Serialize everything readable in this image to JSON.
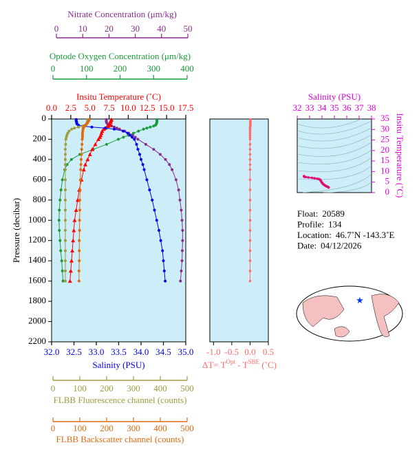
{
  "chart_data": [
    {
      "type": "profile",
      "y_label": "Pressure (decibar)",
      "ylim": [
        0,
        2200
      ],
      "yticks": [
        0,
        200,
        400,
        600,
        800,
        1000,
        1200,
        1400,
        1600,
        1800,
        2000,
        2200
      ],
      "y": [
        5,
        10,
        20,
        30,
        40,
        50,
        60,
        70,
        80,
        90,
        100,
        120,
        140,
        160,
        180,
        200,
        250,
        300,
        350,
        400,
        450,
        500,
        600,
        700,
        800,
        900,
        1000,
        1100,
        1200,
        1300,
        1400,
        1500,
        1600
      ],
      "profiles": [
        {
          "label": "Nitrate Concentration (μm/kg)",
          "color": "#8b2b8b",
          "xlim": [
            0,
            50
          ],
          "xticks": [
            0,
            10,
            20,
            30,
            40,
            50
          ],
          "values": [
            19,
            19,
            19,
            19,
            19.2,
            19.5,
            20,
            21,
            22,
            23,
            24,
            26,
            27.5,
            29,
            30,
            31,
            34,
            37,
            39.5,
            41.5,
            43,
            44,
            45.5,
            46.5,
            47,
            47.5,
            47.8,
            48,
            48,
            47.9,
            47.8,
            47.5,
            47.2
          ]
        },
        {
          "label": "Optode Oxygen Concentration (μm/kg)",
          "color": "#1a9b3a",
          "xlim": [
            0,
            400
          ],
          "xticks": [
            0,
            100,
            200,
            300,
            400
          ],
          "values": [
            310,
            310,
            310,
            310,
            309,
            308,
            306,
            300,
            290,
            280,
            270,
            255,
            240,
            225,
            210,
            195,
            160,
            120,
            80,
            55,
            42,
            35,
            28,
            24,
            21,
            19,
            18,
            19,
            21,
            23,
            26,
            28,
            30
          ]
        },
        {
          "label": "Insitu Temperature (˚C)",
          "color": "#ff0000",
          "xlim": [
            0,
            17.5
          ],
          "xticks": [
            {
              "value": 0,
              "label": "0.0"
            },
            2.5,
            {
              "value": 5,
              "label": "5.0"
            },
            7.5,
            {
              "value": 10,
              "label": "10.0"
            },
            12.5,
            {
              "value": 15,
              "label": "15.0"
            },
            17.5
          ],
          "values": [
            7.8,
            7.8,
            7.7,
            7.7,
            7.6,
            7.6,
            7.5,
            7.4,
            7.2,
            7.0,
            6.8,
            6.6,
            6.5,
            6.4,
            6.3,
            6.1,
            5.7,
            5.3,
            5.0,
            4.7,
            4.4,
            4.2,
            3.9,
            3.6,
            3.4,
            3.2,
            3.0,
            2.9,
            2.8,
            2.7,
            2.6,
            2.5,
            2.4
          ]
        },
        {
          "label": "Salinity (PSU)",
          "color": "#0000ee",
          "xlim": [
            32,
            35
          ],
          "xticks": [
            {
              "value": 32,
              "label": "32.0"
            },
            32.5,
            {
              "value": 33,
              "label": "33.0"
            },
            33.5,
            {
              "value": 34,
              "label": "34.0"
            },
            34.5,
            {
              "value": 35,
              "label": "35.0"
            }
          ],
          "values": [
            32.55,
            32.55,
            32.55,
            32.56,
            32.56,
            32.57,
            32.6,
            32.7,
            32.9,
            33.2,
            33.4,
            33.6,
            33.7,
            33.75,
            33.8,
            33.85,
            33.9,
            33.93,
            33.97,
            34.0,
            34.04,
            34.07,
            34.13,
            34.19,
            34.25,
            34.3,
            34.35,
            34.4,
            34.44,
            34.48,
            34.5,
            34.52,
            34.54
          ]
        },
        {
          "label": "FLBB Fluorescence channel (counts)",
          "color": "#9c9c3c",
          "xlim": [
            0,
            500
          ],
          "xticks": [
            0,
            100,
            200,
            300,
            400,
            500
          ],
          "values": [
            130,
            130,
            129,
            128,
            127,
            125,
            120,
            110,
            95,
            80,
            70,
            60,
            55,
            52,
            50,
            48,
            47,
            46,
            46,
            46,
            46,
            46,
            46,
            46,
            46,
            46,
            46,
            46,
            46,
            46,
            46,
            46,
            46
          ]
        },
        {
          "label": "FLBB Backscatter channel (counts)",
          "color": "#e06a10",
          "xlim": [
            0,
            500
          ],
          "xticks": [
            0,
            100,
            200,
            300,
            400,
            500
          ],
          "values": [
            135,
            134,
            133,
            130,
            128,
            125,
            122,
            118,
            115,
            113,
            112,
            111,
            110,
            110,
            110,
            109,
            108,
            107,
            106,
            105,
            104,
            103,
            102,
            101,
            100,
            100,
            99,
            99,
            98,
            98,
            98,
            97,
            97
          ]
        }
      ]
    },
    {
      "type": "difference",
      "color": "#ff6a6a",
      "label_parts": [
        "ΔT= T",
        "Opt",
        " - T",
        "SBE",
        " (˚C)"
      ],
      "xlim": [
        -1.1,
        0.5
      ],
      "xticks": [
        {
          "value": -1,
          "label": "-1.0"
        },
        -0.5,
        {
          "value": 0,
          "label": "0.0"
        },
        0.5
      ],
      "values": [
        0.01,
        0.01,
        0.01,
        0.01,
        0.01,
        0.01,
        0.01,
        0.01,
        0.0,
        0.0,
        0.0,
        0.0,
        0.0,
        0.0,
        0.0,
        0.0,
        0.0,
        0.0,
        0.0,
        0.0,
        0.0,
        0.0,
        0.0,
        0.0,
        0.0,
        0.0,
        0.0,
        0.0,
        0.0,
        0.0,
        0.0,
        0.0,
        0.0
      ]
    },
    {
      "type": "ts",
      "color": "#dd00dd",
      "point_color": "#dd1177",
      "title": "Salinity (PSU)",
      "y_label": "Insitu Temperature (˚C)",
      "xlim": [
        32,
        38
      ],
      "xticks": [
        32,
        33,
        34,
        35,
        36,
        37,
        38
      ],
      "ylim": [
        0,
        35
      ],
      "yticks": [
        0,
        5,
        10,
        15,
        20,
        25,
        30,
        35
      ]
    }
  ],
  "float_info": [
    {
      "label": "Float:",
      "value": "20589"
    },
    {
      "label": "Profile:",
      "value": "134"
    },
    {
      "label": "Location:",
      "value": "46.7˚N  -143.3˚E"
    },
    {
      "label": "Date:",
      "value": "04/12/2026"
    }
  ]
}
